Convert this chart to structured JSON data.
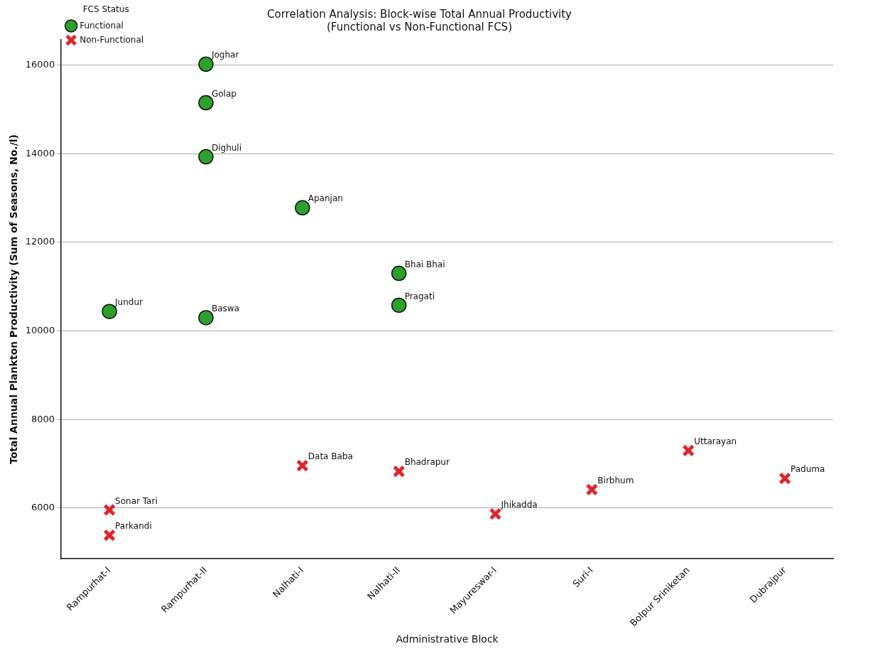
{
  "chart_data": {
    "type": "scatter",
    "title": "Correlation Analysis: Block-wise Total Annual Productivity",
    "subtitle": "(Functional vs Non-Functional FCS)",
    "xlabel": "Administrative Block",
    "ylabel": "Total Annual Plankton Productivity (Sum of Seasons, No./l)",
    "legend_title": "FCS Status",
    "legend": "top left",
    "grid": "y",
    "categories": [
      "Rampurhat-I",
      "Rampurhat-II",
      "Nalhati-I",
      "Nalhati-II",
      "Mayureswar-I",
      "Suri-I",
      "Bolpur Sriniketan",
      "Dubrajpur"
    ],
    "ylim": [
      4860,
      16570
    ],
    "yticks": [
      6000,
      8000,
      10000,
      12000,
      14000,
      16000
    ],
    "series": [
      {
        "name": "Functional",
        "color": "#2ca02c",
        "marker": "circle",
        "x": [
          "Rampurhat-II",
          "Rampurhat-II",
          "Rampurhat-II",
          "Nalhati-I",
          "Nalhati-II",
          "Nalhati-II",
          "Rampurhat-I",
          "Rampurhat-II"
        ],
        "values": [
          16020,
          15150,
          13930,
          12780,
          11300,
          10580,
          10440,
          10300
        ]
      },
      {
        "name": "Non-Functional",
        "color": "#e0262b",
        "marker": "cross",
        "x": [
          "Rampurhat-I",
          "Rampurhat-I",
          "Nalhati-I",
          "Nalhati-II",
          "Mayureswar-I",
          "Suri-I",
          "Bolpur Sriniketan",
          "Dubrajpur"
        ],
        "values": [
          5960,
          5390,
          6960,
          6830,
          5870,
          6420,
          7300,
          6670
        ]
      }
    ],
    "annotations": [
      {
        "text": "Joghar",
        "x": "Rampurhat-II",
        "y": 16020
      },
      {
        "text": "Golap",
        "x": "Rampurhat-II",
        "y": 15150
      },
      {
        "text": "Dighuli",
        "x": "Rampurhat-II",
        "y": 13930
      },
      {
        "text": "Apanjan",
        "x": "Nalhati-I",
        "y": 12780
      },
      {
        "text": "Bhai Bhai",
        "x": "Nalhati-II",
        "y": 11300
      },
      {
        "text": "Pragati",
        "x": "Nalhati-II",
        "y": 10580
      },
      {
        "text": "Jundur",
        "x": "Rampurhat-I",
        "y": 10440
      },
      {
        "text": "Baswa",
        "x": "Rampurhat-II",
        "y": 10300
      },
      {
        "text": "Sonar Tari",
        "x": "Rampurhat-I",
        "y": 5960
      },
      {
        "text": "Parkandi",
        "x": "Rampurhat-I",
        "y": 5390
      },
      {
        "text": "Data Baba",
        "x": "Nalhati-I",
        "y": 6960
      },
      {
        "text": "Bhadrapur",
        "x": "Nalhati-II",
        "y": 6830
      },
      {
        "text": "Jhikadda",
        "x": "Mayureswar-I",
        "y": 5870
      },
      {
        "text": "Birbhum",
        "x": "Suri-I",
        "y": 6420
      },
      {
        "text": "Uttarayan",
        "x": "Bolpur Sriniketan",
        "y": 7300
      },
      {
        "text": "Paduma",
        "x": "Dubrajpur",
        "y": 6670
      }
    ]
  }
}
